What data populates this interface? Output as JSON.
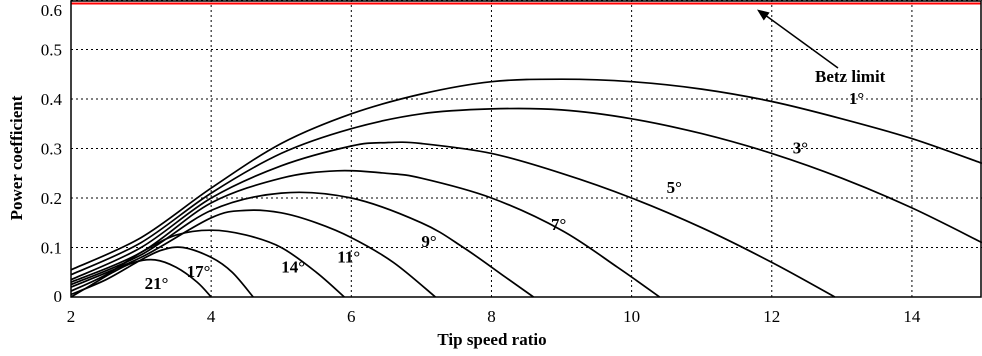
{
  "chart_data": {
    "type": "line",
    "title": "",
    "xlabel": "Tip speed ratio",
    "ylabel": "Power coefficient",
    "xlim": [
      2,
      15
    ],
    "ylim": [
      0,
      0.6
    ],
    "xticks": [
      2,
      4,
      6,
      8,
      10,
      12,
      14
    ],
    "yticks": [
      0,
      0.1,
      0.2,
      0.3,
      0.4,
      0.5,
      0.6
    ],
    "grid": true,
    "betz": {
      "value": 0.593,
      "label": "Betz limit",
      "color": "#ff0000"
    },
    "series": [
      {
        "name": "1°",
        "x": [
          2,
          3,
          4,
          5,
          6,
          7,
          8,
          9,
          10,
          11,
          12,
          13,
          14,
          15
        ],
        "y": [
          0.055,
          0.12,
          0.22,
          0.31,
          0.37,
          0.41,
          0.435,
          0.44,
          0.435,
          0.42,
          0.395,
          0.36,
          0.32,
          0.27
        ]
      },
      {
        "name": "3°",
        "x": [
          2,
          3,
          4,
          5,
          6,
          7,
          8,
          9,
          10,
          11,
          12,
          13,
          14,
          15
        ],
        "y": [
          0.045,
          0.11,
          0.21,
          0.29,
          0.34,
          0.37,
          0.38,
          0.378,
          0.36,
          0.33,
          0.29,
          0.24,
          0.18,
          0.11
        ]
      },
      {
        "name": "5°",
        "x": [
          2,
          3,
          4,
          5,
          6,
          6.5,
          7,
          8,
          9,
          10,
          11,
          12,
          12.9
        ],
        "y": [
          0.035,
          0.1,
          0.2,
          0.265,
          0.305,
          0.312,
          0.31,
          0.29,
          0.25,
          0.2,
          0.14,
          0.07,
          0.0
        ]
      },
      {
        "name": "7°",
        "x": [
          2,
          3,
          4,
          5,
          5.8,
          6.5,
          7,
          8,
          9,
          9.8,
          10.4
        ],
        "y": [
          0.03,
          0.09,
          0.19,
          0.24,
          0.255,
          0.25,
          0.24,
          0.2,
          0.135,
          0.06,
          0.0
        ]
      },
      {
        "name": "9°",
        "x": [
          2,
          3,
          4,
          5,
          6,
          7,
          7.6,
          8.2,
          8.6
        ],
        "y": [
          0.025,
          0.085,
          0.175,
          0.21,
          0.2,
          0.15,
          0.1,
          0.04,
          0.0
        ]
      },
      {
        "name": "11°",
        "x": [
          2,
          3,
          4,
          4.5,
          5,
          5.5,
          6,
          6.6,
          7.2
        ],
        "y": [
          0.02,
          0.08,
          0.16,
          0.175,
          0.17,
          0.15,
          0.12,
          0.07,
          0.0
        ]
      },
      {
        "name": "14°",
        "x": [
          2,
          2.5,
          3,
          3.5,
          4,
          4.5,
          5,
          5.5,
          5.9
        ],
        "y": [
          0.012,
          0.045,
          0.09,
          0.125,
          0.135,
          0.125,
          0.1,
          0.05,
          0.0
        ]
      },
      {
        "name": "17°",
        "x": [
          2,
          2.5,
          3,
          3.3,
          3.6,
          4,
          4.3,
          4.6
        ],
        "y": [
          0.005,
          0.035,
          0.075,
          0.095,
          0.1,
          0.08,
          0.05,
          0.0
        ]
      },
      {
        "name": "21°",
        "x": [
          2,
          2.3,
          2.6,
          2.9,
          3.2,
          3.5,
          3.8,
          4.0
        ],
        "y": [
          0.0,
          0.025,
          0.05,
          0.07,
          0.075,
          0.06,
          0.03,
          0.0
        ]
      }
    ],
    "curve_labels": [
      {
        "text": "1°",
        "x": 13.1,
        "y": 0.39
      },
      {
        "text": "3°",
        "x": 12.3,
        "y": 0.29
      },
      {
        "text": "5°",
        "x": 10.5,
        "y": 0.21
      },
      {
        "text": "7°",
        "x": 8.85,
        "y": 0.135
      },
      {
        "text": "9°",
        "x": 7.0,
        "y": 0.101
      },
      {
        "text": "11°",
        "x": 5.8,
        "y": 0.07
      },
      {
        "text": "14°",
        "x": 5.0,
        "y": 0.05
      },
      {
        "text": "17°",
        "x": 3.65,
        "y": 0.04
      },
      {
        "text": "21°",
        "x": 3.05,
        "y": 0.016
      }
    ]
  }
}
